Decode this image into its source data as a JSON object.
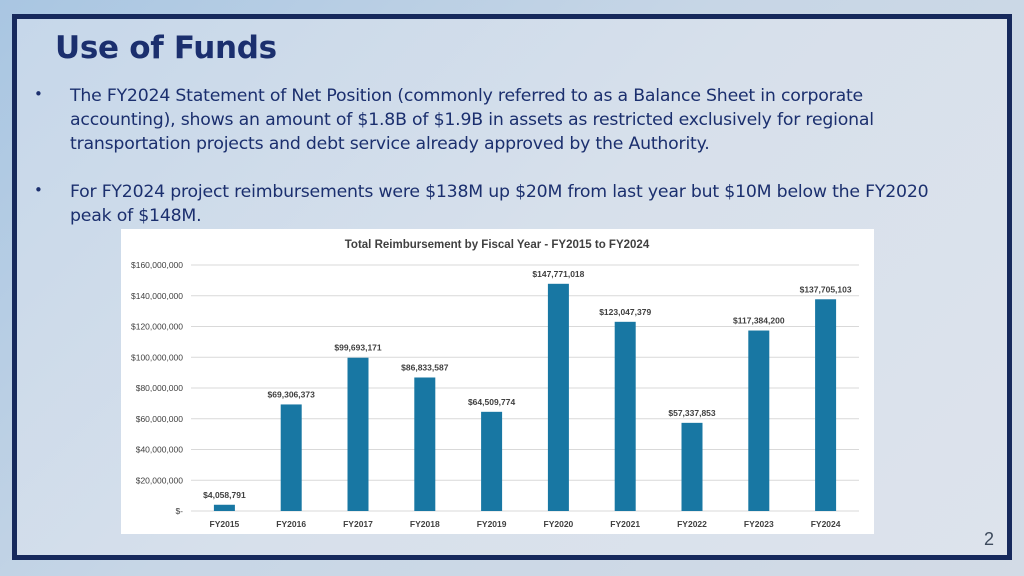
{
  "slide": {
    "title": "Use of Funds",
    "page_number": "2",
    "bullets": [
      {
        "marker": "•",
        "text": "The FY2024 Statement of Net Position (commonly referred to as a Balance Sheet in corporate accounting), shows an amount of $1.8B of $1.9B in assets as restricted exclusively for regional transportation projects and debt service already approved by the Authority."
      },
      {
        "marker": "•",
        "text": "For FY2024 project reimbursements were $138M up $20M from last year but $10M below the FY2020 peak of $148M."
      }
    ]
  },
  "colors": {
    "bar": "#1877a3",
    "title_text": "#1b2f6e",
    "frame_border": "#16295c",
    "gridline": "#d9d9d9"
  },
  "chart_data": {
    "type": "bar",
    "title": "Total Reimbursement by Fiscal Year - FY2015 to FY2024",
    "xlabel": "",
    "ylabel": "",
    "categories": [
      "FY2015",
      "FY2016",
      "FY2017",
      "FY2018",
      "FY2019",
      "FY2020",
      "FY2021",
      "FY2022",
      "FY2023",
      "FY2024"
    ],
    "values": [
      4058791,
      69306373,
      99693171,
      86833587,
      64509774,
      147771018,
      123047379,
      57337853,
      117384200,
      137705103
    ],
    "data_labels": [
      "$4,058,791",
      "$69,306,373",
      "$99,693,171",
      "$86,833,587",
      "$64,509,774",
      "$147,771,018",
      "$123,047,379",
      "$57,337,853",
      "$117,384,200",
      "$137,705,103"
    ],
    "yticks": [
      0,
      20000000,
      40000000,
      60000000,
      80000000,
      100000000,
      120000000,
      140000000,
      160000000
    ],
    "ytick_labels": [
      "$-",
      "$20,000,000",
      "$40,000,000",
      "$60,000,000",
      "$80,000,000",
      "$100,000,000",
      "$120,000,000",
      "$140,000,000",
      "$160,000,000"
    ],
    "ylim": [
      0,
      160000000
    ],
    "grid": true,
    "legend": "none"
  }
}
